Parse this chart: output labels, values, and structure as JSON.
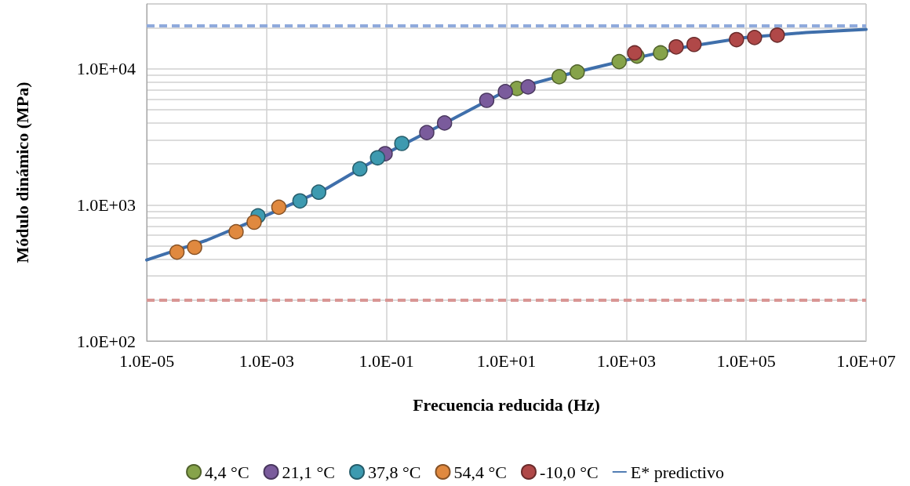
{
  "chart_data": {
    "type": "scatter",
    "xlabel": "Frecuencia reducida (Hz)",
    "ylabel": "Módulo dinámico (MPa)",
    "log": "xy",
    "grid": true,
    "legend": "bottom",
    "marker": "circle",
    "xlim": [
      1e-05,
      10000000
    ],
    "ylim": [
      100,
      30000
    ],
    "xticks": [
      {
        "value": 1e-05,
        "label": "1.0E-05"
      },
      {
        "value": 0.001,
        "label": "1.0E-03"
      },
      {
        "value": 0.1,
        "label": "1.0E-01"
      },
      {
        "value": 10,
        "label": "1.0E+01"
      },
      {
        "value": 1000,
        "label": "1.0E+03"
      },
      {
        "value": 100000,
        "label": "1.0E+05"
      },
      {
        "value": 10000000,
        "label": "1.0E+07"
      }
    ],
    "yticks": [
      {
        "value": 100,
        "label": "1.0E+02"
      },
      {
        "value": 200,
        "label": null
      },
      {
        "value": 300,
        "label": null
      },
      {
        "value": 400,
        "label": null
      },
      {
        "value": 500,
        "label": null
      },
      {
        "value": 600,
        "label": null
      },
      {
        "value": 700,
        "label": null
      },
      {
        "value": 800,
        "label": null
      },
      {
        "value": 900,
        "label": null
      },
      {
        "value": 1000,
        "label": "1.0E+03"
      },
      {
        "value": 2000,
        "label": null
      },
      {
        "value": 3000,
        "label": null
      },
      {
        "value": 4000,
        "label": null
      },
      {
        "value": 5000,
        "label": null
      },
      {
        "value": 6000,
        "label": null
      },
      {
        "value": 7000,
        "label": null
      },
      {
        "value": 8000,
        "label": null
      },
      {
        "value": 9000,
        "label": null
      },
      {
        "value": 10000,
        "label": "1.0E+04"
      },
      {
        "value": 20000,
        "label": null
      }
    ],
    "ref_lines": [
      {
        "axis": "y",
        "value": 20800,
        "color": "#8faadc",
        "line_style": "dashed"
      },
      {
        "axis": "y",
        "value": 200,
        "color": "#d99694",
        "line_style": "dashed"
      }
    ],
    "series": [
      {
        "name": "4,4 °C",
        "color": "#86a34a",
        "x": [
          15,
          76,
          152,
          760,
          1510,
          3730
        ],
        "values": [
          7170,
          8750,
          9480,
          11300,
          12400,
          13100
        ]
      },
      {
        "name": "21,1 °C",
        "color": "#7a5b9c",
        "x": [
          0.095,
          0.47,
          0.93,
          4.7,
          9.6,
          23
        ],
        "values": [
          2380,
          3400,
          4000,
          5870,
          6800,
          7360
        ]
      },
      {
        "name": "37,8 °C",
        "color": "#3d9ab0",
        "x": [
          0.00072,
          0.0036,
          0.0074,
          0.036,
          0.071,
          0.18
        ],
        "values": [
          830,
          1070,
          1240,
          1840,
          2220,
          2830
        ]
      },
      {
        "name": "54,4 °C",
        "color": "#e0893f",
        "x": [
          3.2e-05,
          6.3e-05,
          0.00031,
          0.00062,
          0.0016
        ],
        "values": [
          450,
          488,
          635,
          746,
          962
        ]
      },
      {
        "name": "-10,0 °C",
        "color": "#b04848",
        "x": [
          1380,
          6800,
          13500,
          69000,
          138000,
          330000
        ],
        "values": [
          13100,
          14500,
          15100,
          16400,
          17000,
          17700
        ]
      },
      {
        "name": "E* predictivo",
        "type": "line",
        "marker": "none",
        "color": "#3f6fab",
        "x": [
          1e-05,
          0.0001,
          0.001,
          0.01,
          0.1,
          1,
          10,
          100,
          1000,
          10000,
          100000,
          1000000,
          10000000
        ],
        "values": [
          394,
          550,
          840,
          1320,
          2400,
          4050,
          6900,
          9100,
          11600,
          14500,
          17000,
          18500,
          19500
        ]
      }
    ]
  }
}
